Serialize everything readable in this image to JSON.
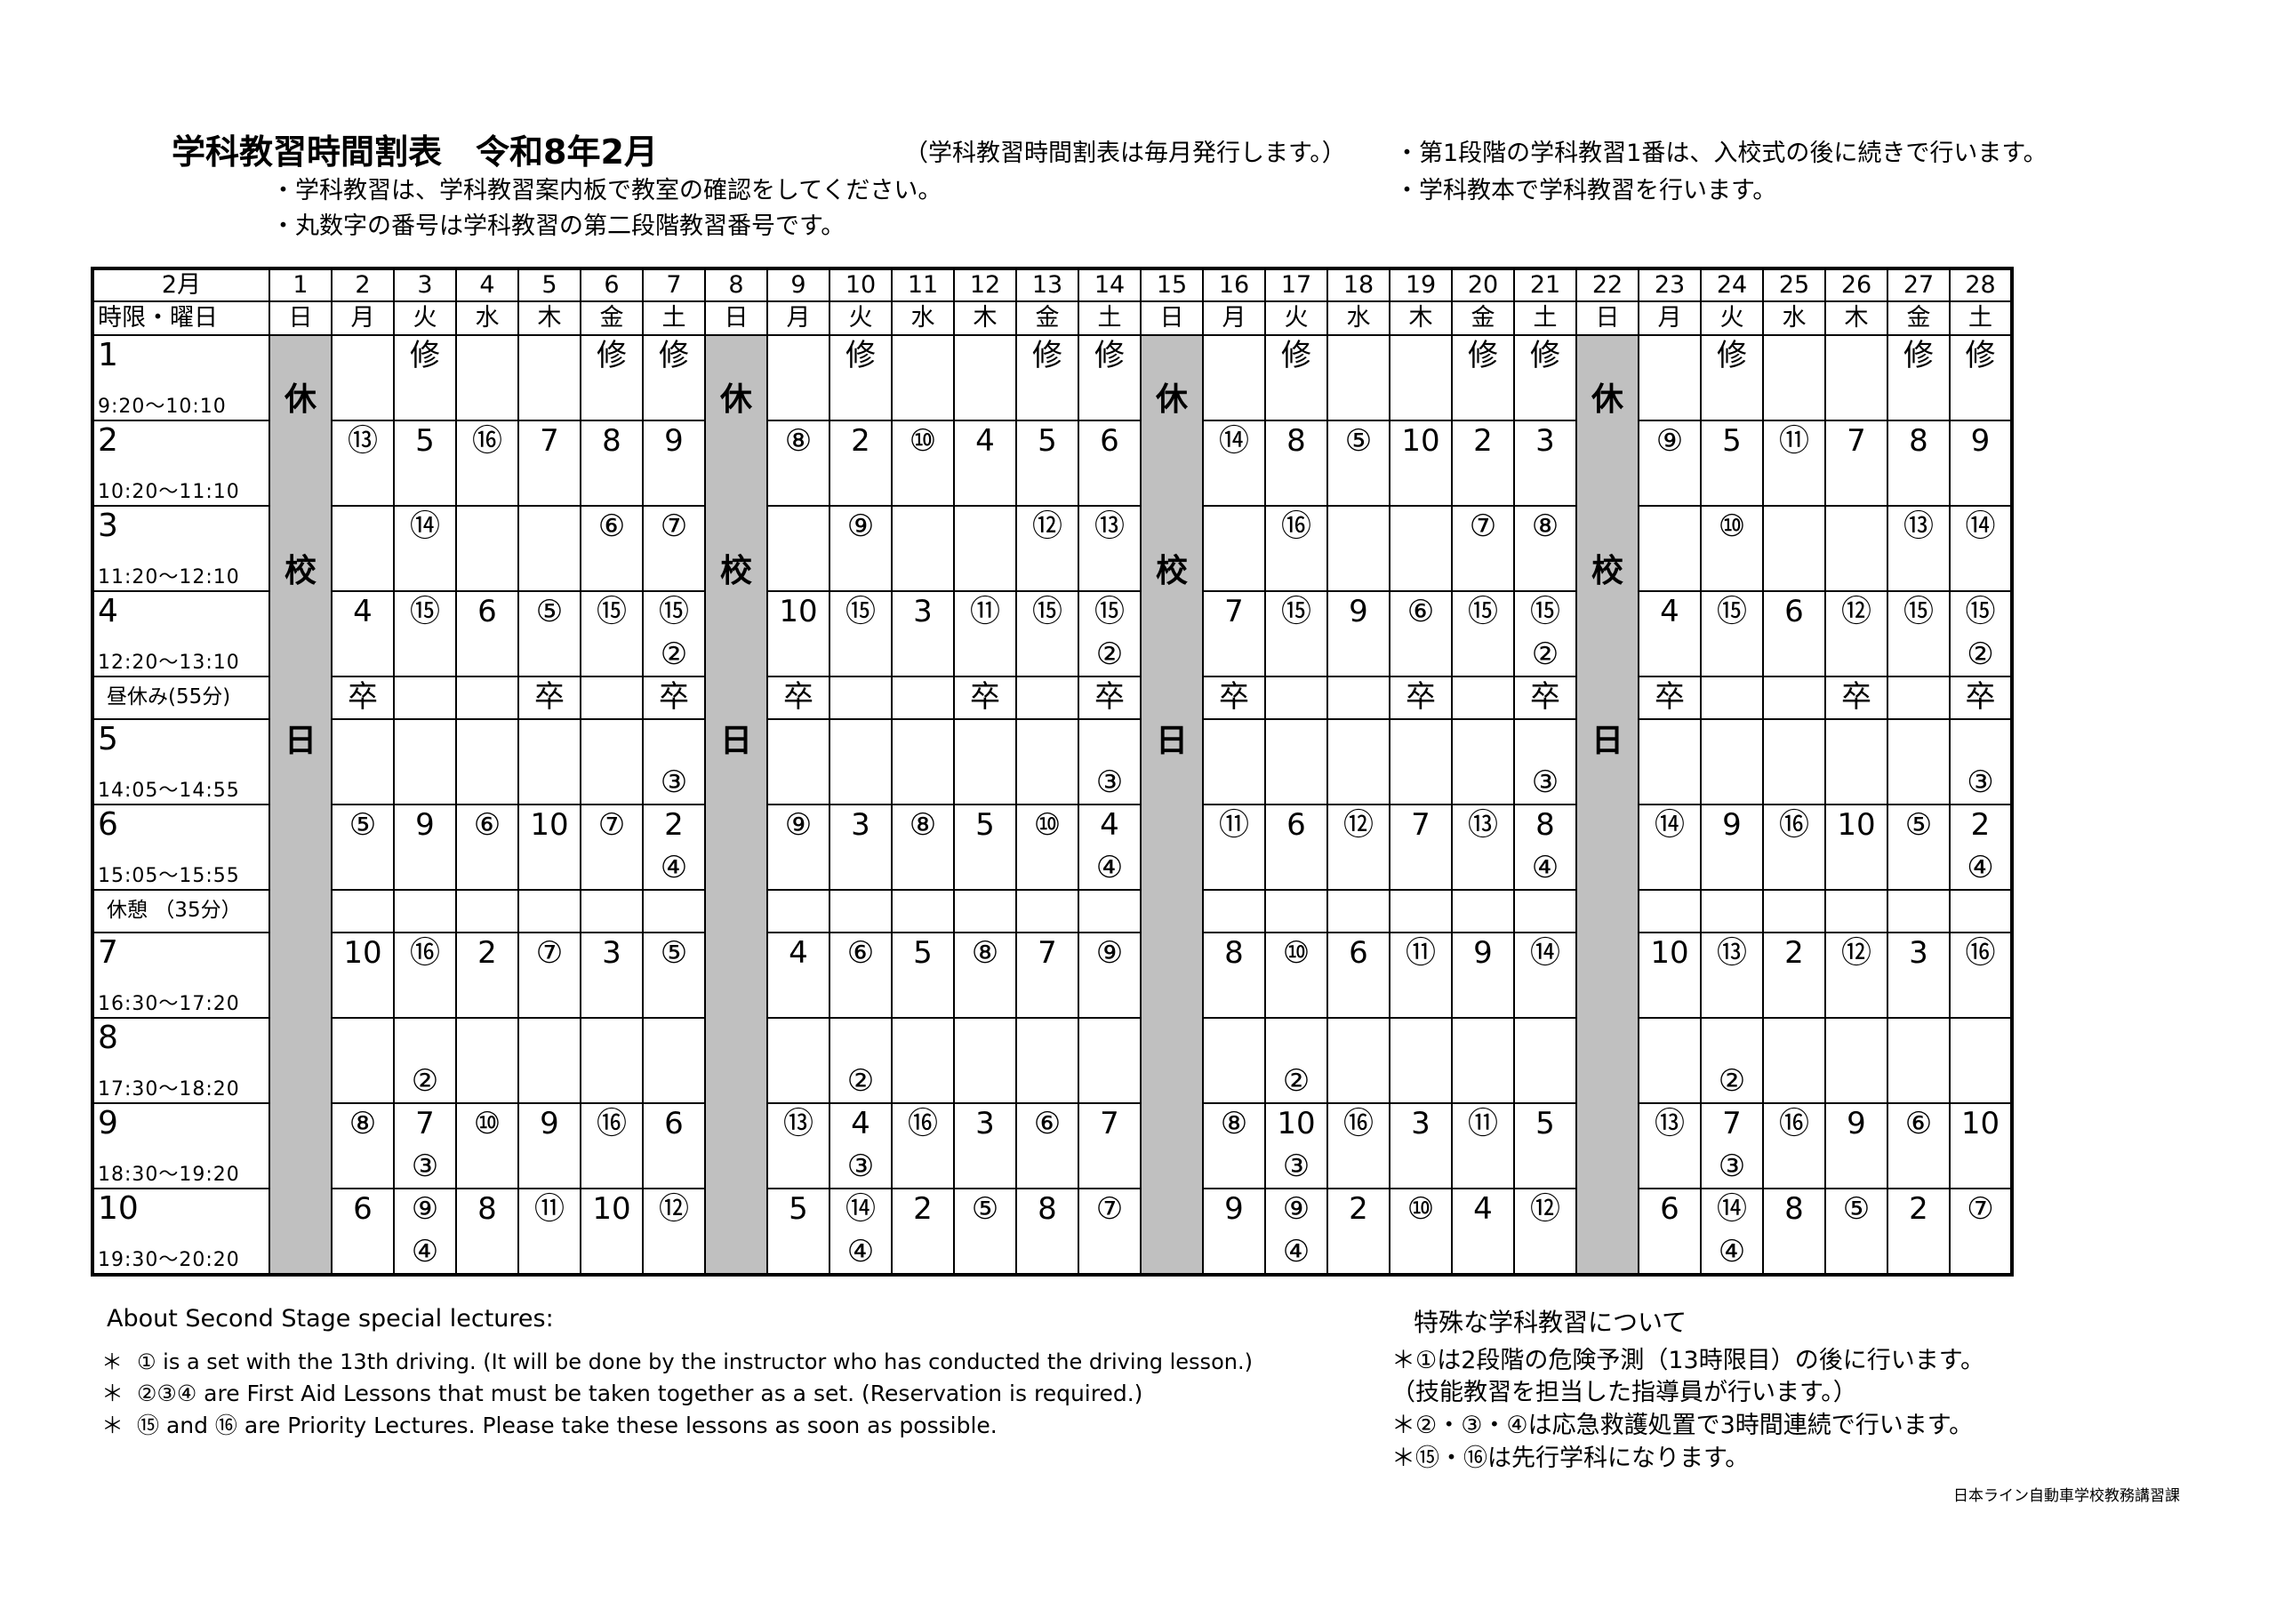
{
  "header": {
    "title": "学科教習時間割表　令和8年2月",
    "issue_note": "（学科教習時間割表は毎月発行します。）",
    "left_notes": [
      "・学科教習は、学科教習案内板で教室の確認をしてください。",
      "・丸数字の番号は学科教習の第二段階教習番号です。"
    ],
    "right_notes": [
      "・第1段階の学科教習1番は、入校式の後に続きで行います。",
      "・学科教本で学科教習を行います。"
    ]
  },
  "table": {
    "month_label": "2月",
    "period_day_label": "時限・曜日",
    "days": [
      "1",
      "2",
      "3",
      "4",
      "5",
      "6",
      "7",
      "8",
      "9",
      "10",
      "11",
      "12",
      "13",
      "14",
      "15",
      "16",
      "17",
      "18",
      "19",
      "20",
      "21",
      "22",
      "23",
      "24",
      "25",
      "26",
      "27",
      "28"
    ],
    "weekdays": [
      "日",
      "月",
      "火",
      "水",
      "木",
      "金",
      "土",
      "日",
      "月",
      "火",
      "水",
      "木",
      "金",
      "土",
      "日",
      "月",
      "火",
      "水",
      "木",
      "金",
      "土",
      "日",
      "月",
      "火",
      "水",
      "木",
      "金",
      "土"
    ],
    "closed_label": [
      "休",
      "校",
      "日"
    ],
    "closed_color": "#c0c0c0",
    "rows": [
      {
        "type": "period",
        "num": "1",
        "time": "9:20～10:10",
        "cells": [
          null,
          "",
          "修",
          "",
          "",
          "修",
          "修",
          null,
          "",
          "修",
          "",
          "",
          "修",
          "修",
          null,
          "",
          "修",
          "",
          "",
          "修",
          "修",
          null,
          "",
          "修",
          "",
          "",
          "修",
          "修"
        ]
      },
      {
        "type": "period",
        "num": "2",
        "time": "10:20～11:10",
        "cells": [
          null,
          "⑬",
          "5",
          "⑯",
          "7",
          "8",
          "9",
          null,
          "⑧",
          "2",
          "⑩",
          "4",
          "5",
          "6",
          null,
          "⑭",
          "8",
          "⑤",
          "10",
          "2",
          "3",
          null,
          "⑨",
          "5",
          "⑪",
          "7",
          "8",
          "9"
        ]
      },
      {
        "type": "period",
        "num": "3",
        "time": "11:20～12:10",
        "cells": [
          null,
          "",
          "⑭",
          "",
          "",
          "⑥",
          "⑦",
          null,
          "",
          "⑨",
          "",
          "",
          "⑫",
          "⑬",
          null,
          "",
          "⑯",
          "",
          "",
          "⑦",
          "⑧",
          null,
          "",
          "⑩",
          "",
          "",
          "⑬",
          "⑭"
        ]
      },
      {
        "type": "period",
        "num": "4",
        "time": "12:20～13:10",
        "cells": [
          null,
          "4",
          "⑮",
          "6",
          "⑤",
          "⑮",
          [
            "⑮",
            "②"
          ],
          null,
          "10",
          "⑮",
          "3",
          "⑪",
          "⑮",
          [
            "⑮",
            "②"
          ],
          null,
          "7",
          "⑮",
          "9",
          "⑥",
          "⑮",
          [
            "⑮",
            "②"
          ],
          null,
          "4",
          "⑮",
          "6",
          "⑫",
          "⑮",
          [
            "⑮",
            "②"
          ]
        ]
      },
      {
        "type": "break",
        "label": "昼休み(55分)",
        "cells": [
          null,
          "卒",
          "",
          "",
          "卒",
          "",
          "卒",
          null,
          "卒",
          "",
          "",
          "卒",
          "",
          "卒",
          null,
          "卒",
          "",
          "",
          "卒",
          "",
          "卒",
          null,
          "卒",
          "",
          "",
          "卒",
          "",
          "卒"
        ]
      },
      {
        "type": "period",
        "num": "5",
        "time": "14:05～14:55",
        "cells": [
          null,
          "",
          "",
          "",
          "",
          "",
          [
            "",
            "③"
          ],
          null,
          "",
          "",
          "",
          "",
          "",
          [
            "",
            "③"
          ],
          null,
          "",
          "",
          "",
          "",
          "",
          [
            "",
            "③"
          ],
          null,
          "",
          "",
          "",
          "",
          "",
          [
            "",
            "③"
          ]
        ]
      },
      {
        "type": "period",
        "num": "6",
        "time": "15:05～15:55",
        "cells": [
          null,
          "⑤",
          "9",
          "⑥",
          "10",
          "⑦",
          [
            "2",
            "④"
          ],
          null,
          "⑨",
          "3",
          "⑧",
          "5",
          "⑩",
          [
            "4",
            "④"
          ],
          null,
          "⑪",
          "6",
          "⑫",
          "7",
          "⑬",
          [
            "8",
            "④"
          ],
          null,
          "⑭",
          "9",
          "⑯",
          "10",
          "⑤",
          [
            "2",
            "④"
          ]
        ]
      },
      {
        "type": "break",
        "label": "休憩 （35分）",
        "cells": [
          null,
          "",
          "",
          "",
          "",
          "",
          "",
          null,
          "",
          "",
          "",
          "",
          "",
          "",
          null,
          "",
          "",
          "",
          "",
          "",
          "",
          null,
          "",
          "",
          "",
          "",
          "",
          ""
        ]
      },
      {
        "type": "period",
        "num": "7",
        "time": "16:30～17:20",
        "cells": [
          null,
          "10",
          "⑯",
          "2",
          "⑦",
          "3",
          "⑤",
          null,
          "4",
          "⑥",
          "5",
          "⑧",
          "7",
          "⑨",
          null,
          "8",
          "⑩",
          "6",
          "⑪",
          "9",
          "⑭",
          null,
          "10",
          "⑬",
          "2",
          "⑫",
          "3",
          "⑯"
        ]
      },
      {
        "type": "period",
        "num": "8",
        "time": "17:30～18:20",
        "cells": [
          null,
          "",
          [
            "",
            "②"
          ],
          "",
          "",
          "",
          "",
          null,
          "",
          [
            "",
            "②"
          ],
          "",
          "",
          "",
          "",
          null,
          "",
          [
            "",
            "②"
          ],
          "",
          "",
          "",
          "",
          null,
          "",
          [
            "",
            "②"
          ],
          "",
          "",
          "",
          ""
        ]
      },
      {
        "type": "period",
        "num": "9",
        "time": "18:30～19:20",
        "cells": [
          null,
          "⑧",
          [
            "7",
            "③"
          ],
          "⑩",
          "9",
          "⑯",
          "6",
          null,
          "⑬",
          [
            "4",
            "③"
          ],
          "⑯",
          "3",
          "⑥",
          "7",
          null,
          "⑧",
          [
            "10",
            "③"
          ],
          "⑯",
          "3",
          "⑪",
          "5",
          null,
          "⑬",
          [
            "7",
            "③"
          ],
          "⑯",
          "9",
          "⑥",
          "10"
        ]
      },
      {
        "type": "period",
        "num": "10",
        "time": "19:30～20:20",
        "cells": [
          null,
          "6",
          [
            "⑨",
            "④"
          ],
          "8",
          "⑪",
          "10",
          "⑫",
          null,
          "5",
          [
            "⑭",
            "④"
          ],
          "2",
          "⑤",
          "8",
          "⑦",
          null,
          "9",
          [
            "⑨",
            "④"
          ],
          "2",
          "⑩",
          "4",
          "⑫",
          null,
          "6",
          [
            "⑭",
            "④"
          ],
          "8",
          "⑤",
          "2",
          "⑦"
        ]
      }
    ]
  },
  "english_notes": {
    "title": "About Second Stage special lectures:",
    "bullet": "＊",
    "items": [
      "① is a set with the 13th driving. (It will be done by the instructor who has conducted the driving lesson.)",
      "②③④ are First Aid Lessons that must be taken together as a set. (Reservation is required.)",
      "⑮ and ⑯ are Priority Lectures. Please take these lessons as soon as possible."
    ]
  },
  "japanese_notes": {
    "title": "特殊な学科教習について",
    "items": [
      "＊①は2段階の危険予測（13時限目）の後に行います。",
      "（技能教習を担当した指導員が行います。）",
      "＊②・③・④は応急救護処置で3時間連続で行います。",
      "＊⑮・⑯は先行学科になります。"
    ]
  },
  "footer": {
    "department": "日本ライン自動車学校教務講習課"
  }
}
